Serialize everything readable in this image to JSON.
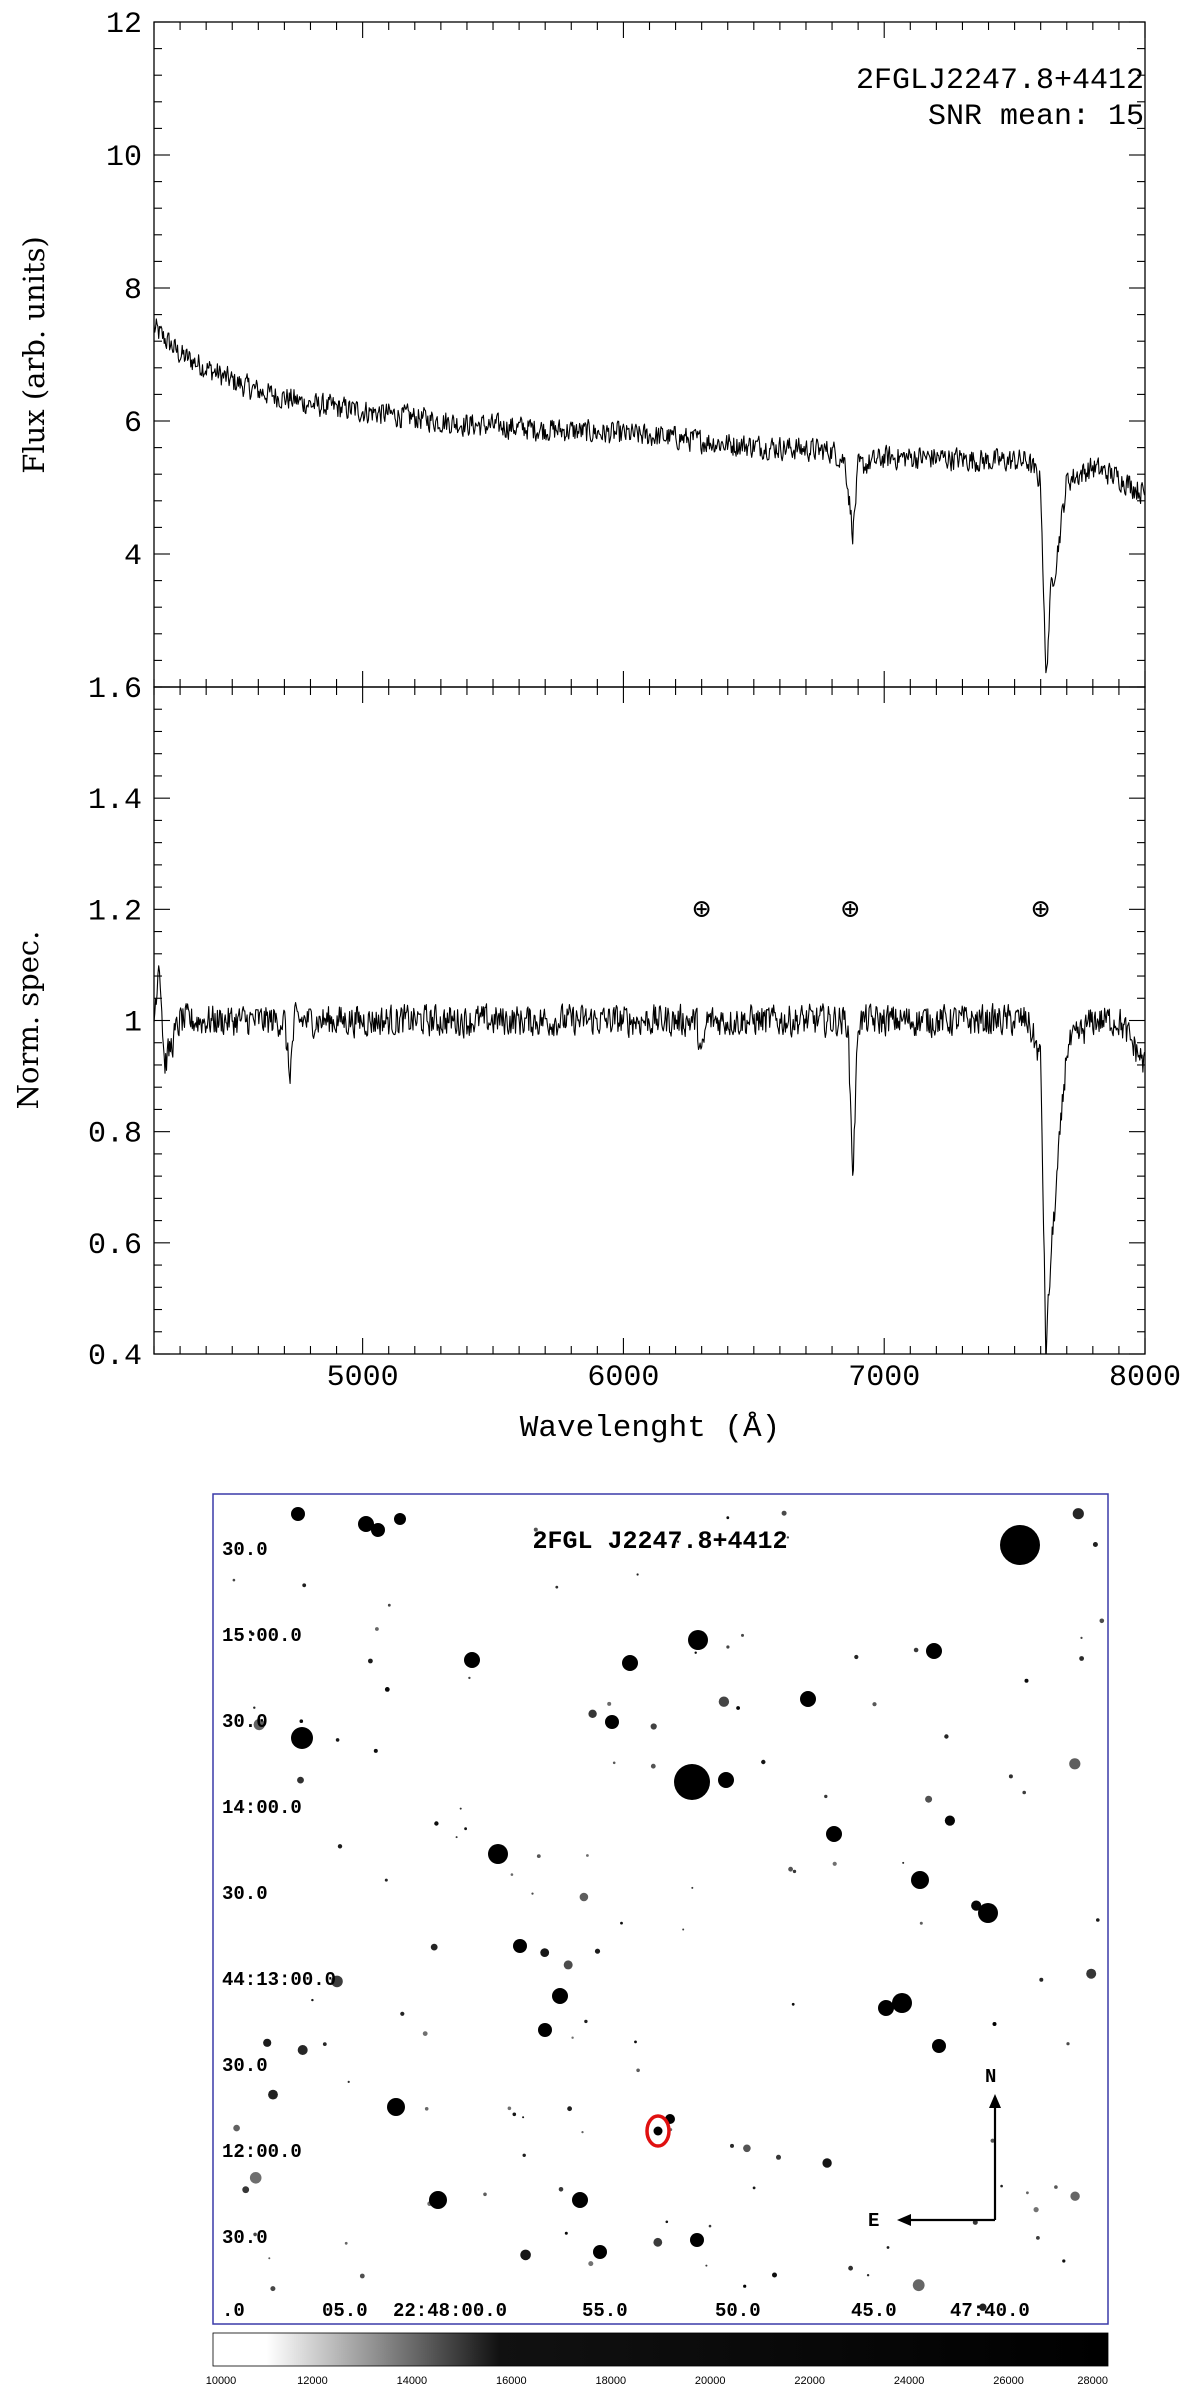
{
  "chart_data": [
    {
      "type": "line",
      "panel": "top",
      "annotation_lines": [
        "2FGLJ2247.8+4412",
        "SNR mean: 15"
      ],
      "xlabel": "",
      "ylabel": "Flux (arb. units)",
      "xlim": [
        4200,
        8000
      ],
      "ylim": [
        2,
        12
      ],
      "y_ticks": [
        4,
        6,
        8,
        10,
        12
      ],
      "y_tick_labels": [
        "4",
        "6",
        "8",
        "10",
        "12"
      ],
      "x_ticks": [
        5000,
        6000,
        7000,
        8000
      ],
      "series": [
        {
          "x": [
            4200,
            4250,
            4300,
            4350,
            4400,
            4500,
            4600,
            4700,
            4800,
            4900,
            5000,
            5200,
            5400,
            5600,
            5800,
            6000,
            6200,
            6400,
            6600,
            6800,
            6850,
            6880,
            6900,
            7000,
            7200,
            7400,
            7550,
            7600,
            7620,
            7640,
            7660,
            7700,
            7800,
            7900,
            8000
          ],
          "y": [
            7.4,
            7.2,
            7.0,
            6.9,
            6.8,
            6.6,
            6.45,
            6.35,
            6.25,
            6.2,
            6.15,
            6.05,
            5.95,
            5.9,
            5.85,
            5.8,
            5.75,
            5.65,
            5.6,
            5.55,
            5.4,
            4.3,
            5.3,
            5.45,
            5.45,
            5.4,
            5.4,
            5.1,
            2.1,
            3.5,
            3.9,
            5.1,
            5.3,
            5.15,
            4.9
          ]
        }
      ]
    },
    {
      "type": "line",
      "panel": "bottom",
      "xlabel": "Wavelenght (Å)",
      "ylabel": "Norm. spec.",
      "xlim": [
        4200,
        8000
      ],
      "ylim": [
        0.4,
        1.6
      ],
      "y_ticks": [
        0.4,
        0.6,
        0.8,
        1,
        1.2,
        1.4,
        1.6
      ],
      "y_tick_labels": [
        "0.4",
        "0.6",
        "0.8",
        "1",
        "1.2",
        "1.4",
        "1.6"
      ],
      "x_ticks": [
        5000,
        6000,
        7000,
        8000
      ],
      "x_tick_labels": [
        "5000",
        "6000",
        "7000",
        "8000"
      ],
      "telluric_markers_x": [
        6300,
        6870,
        7600
      ],
      "telluric_symbol": "⊕",
      "series": [
        {
          "x": [
            4200,
            4220,
            4240,
            4300,
            4400,
            4500,
            4600,
            4700,
            4720,
            4740,
            4800,
            5000,
            5200,
            5400,
            5600,
            5800,
            6000,
            6200,
            6280,
            6300,
            6320,
            6400,
            6600,
            6800,
            6860,
            6880,
            6900,
            7000,
            7200,
            7400,
            7550,
            7600,
            7620,
            7640,
            7660,
            7700,
            7800,
            7900,
            8000
          ],
          "y": [
            1.0,
            1.12,
            0.92,
            1.0,
            1.0,
            1.0,
            1.0,
            1.0,
            0.9,
            1.0,
            1.0,
            1.0,
            1.0,
            1.0,
            1.0,
            1.0,
            1.0,
            1.0,
            1.0,
            0.93,
            1.0,
            1.0,
            1.0,
            1.0,
            1.0,
            0.72,
            1.0,
            1.0,
            1.0,
            1.0,
            1.0,
            0.93,
            0.4,
            0.58,
            0.7,
            0.95,
            1.0,
            1.0,
            0.92
          ]
        }
      ]
    }
  ],
  "finding_chart": {
    "title": "2FGL J2247.8+4412",
    "dec_labels": [
      "30.0",
      "15:00.0",
      "30.0",
      "14:00.0",
      "30.0",
      "44:13:00.0",
      "30.0",
      "12:00.0",
      "30.0"
    ],
    "ra_labels": [
      ".0",
      "05.0",
      "22:48:00.0",
      "55.0",
      "50.0",
      "45.0",
      "47:40.0"
    ],
    "compass": {
      "north": "N",
      "east": "E"
    },
    "target_marker_color": "#e01010",
    "frame_color": "#3a3aa8",
    "colorbar": {
      "range": [
        10000,
        28000
      ],
      "tick_labels": [
        "10000",
        "12000",
        "14000",
        "16000",
        "18000",
        "20000",
        "22000",
        "24000",
        "26000",
        "28000"
      ]
    }
  }
}
